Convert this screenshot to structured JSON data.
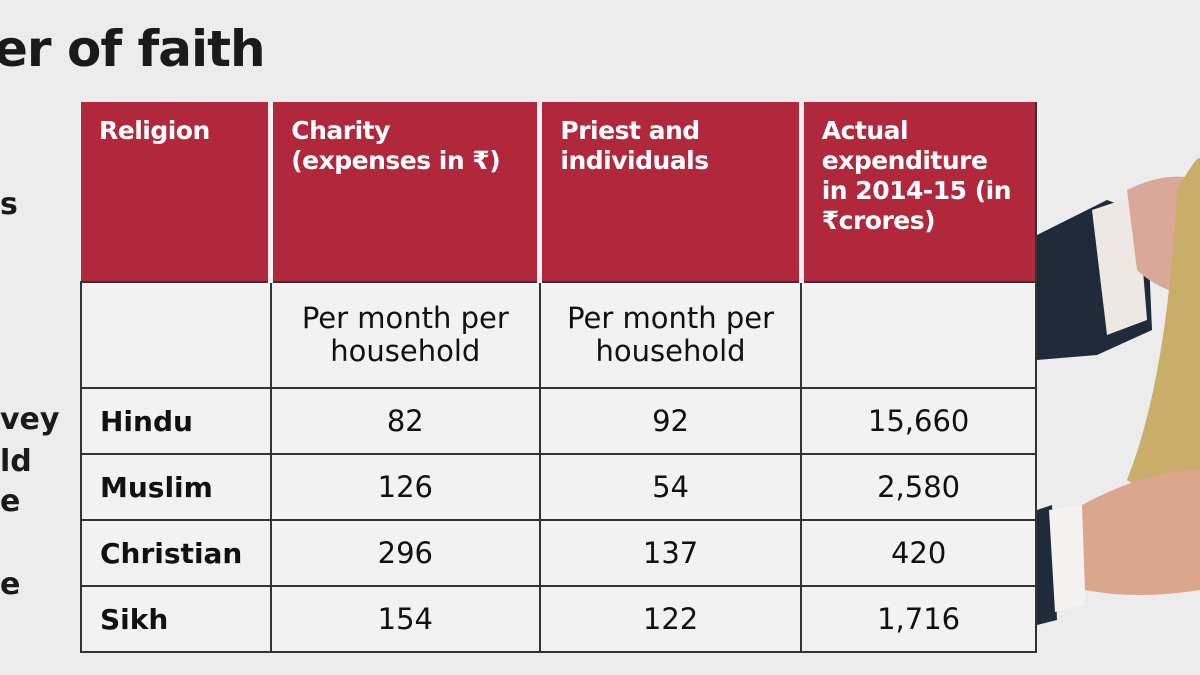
{
  "title": "er of faith",
  "left_fragments": [
    "s",
    "vey",
    "ld",
    "e",
    "e"
  ],
  "table": {
    "headers": [
      "Religion",
      "Charity (expenses in ₹)",
      "Priest and individuals",
      "Actual expenditure in 2014-15 (in ₹crores)"
    ],
    "subheader": [
      "",
      "Per month per household",
      "Per month per household",
      ""
    ],
    "rows": [
      {
        "religion": "Hindu",
        "charity": "82",
        "priest": "92",
        "actual": "15,660"
      },
      {
        "religion": "Muslim",
        "charity": "126",
        "priest": "54",
        "actual": "2,580"
      },
      {
        "religion": "Christian",
        "charity": "296",
        "priest": "137",
        "actual": "420"
      },
      {
        "religion": "Sikh",
        "charity": "154",
        "priest": "122",
        "actual": "1,716"
      }
    ]
  },
  "colors": {
    "header": "#b1283d",
    "background": "#ececec"
  }
}
